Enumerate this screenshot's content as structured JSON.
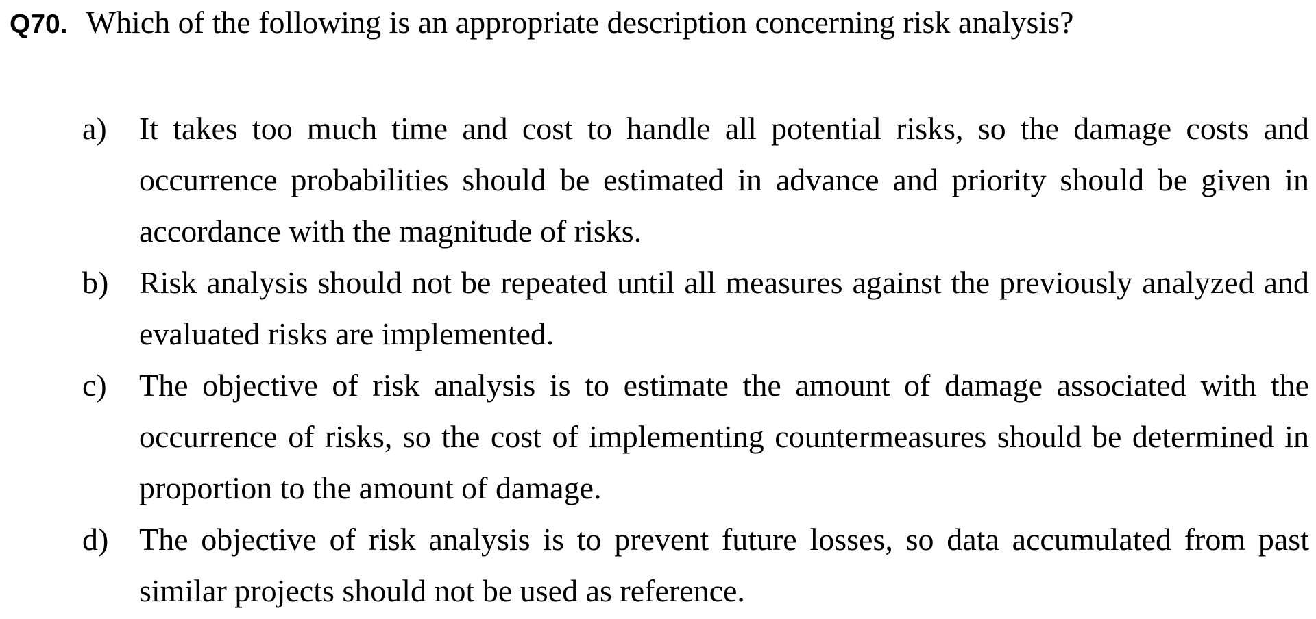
{
  "question": {
    "number": "Q70.",
    "text": "Which of the following is an appropriate description concerning risk analysis?"
  },
  "options": [
    {
      "letter": "a)",
      "text": "It takes too much time and cost to handle all potential risks, so the damage costs and occurrence probabilities should be estimated in advance and priority should be given in accordance with the magnitude of risks."
    },
    {
      "letter": "b)",
      "text": "Risk analysis should not be repeated until all measures against the previously analyzed and evaluated risks are implemented."
    },
    {
      "letter": "c)",
      "text": "The objective of risk analysis is to estimate the amount of damage associated with the occurrence of risks, so the cost of implementing countermeasures should be determined in proportion to the amount of damage."
    },
    {
      "letter": "d)",
      "text": "The objective of risk analysis is to prevent future losses, so data accumulated from past similar projects should not be used as reference."
    }
  ]
}
